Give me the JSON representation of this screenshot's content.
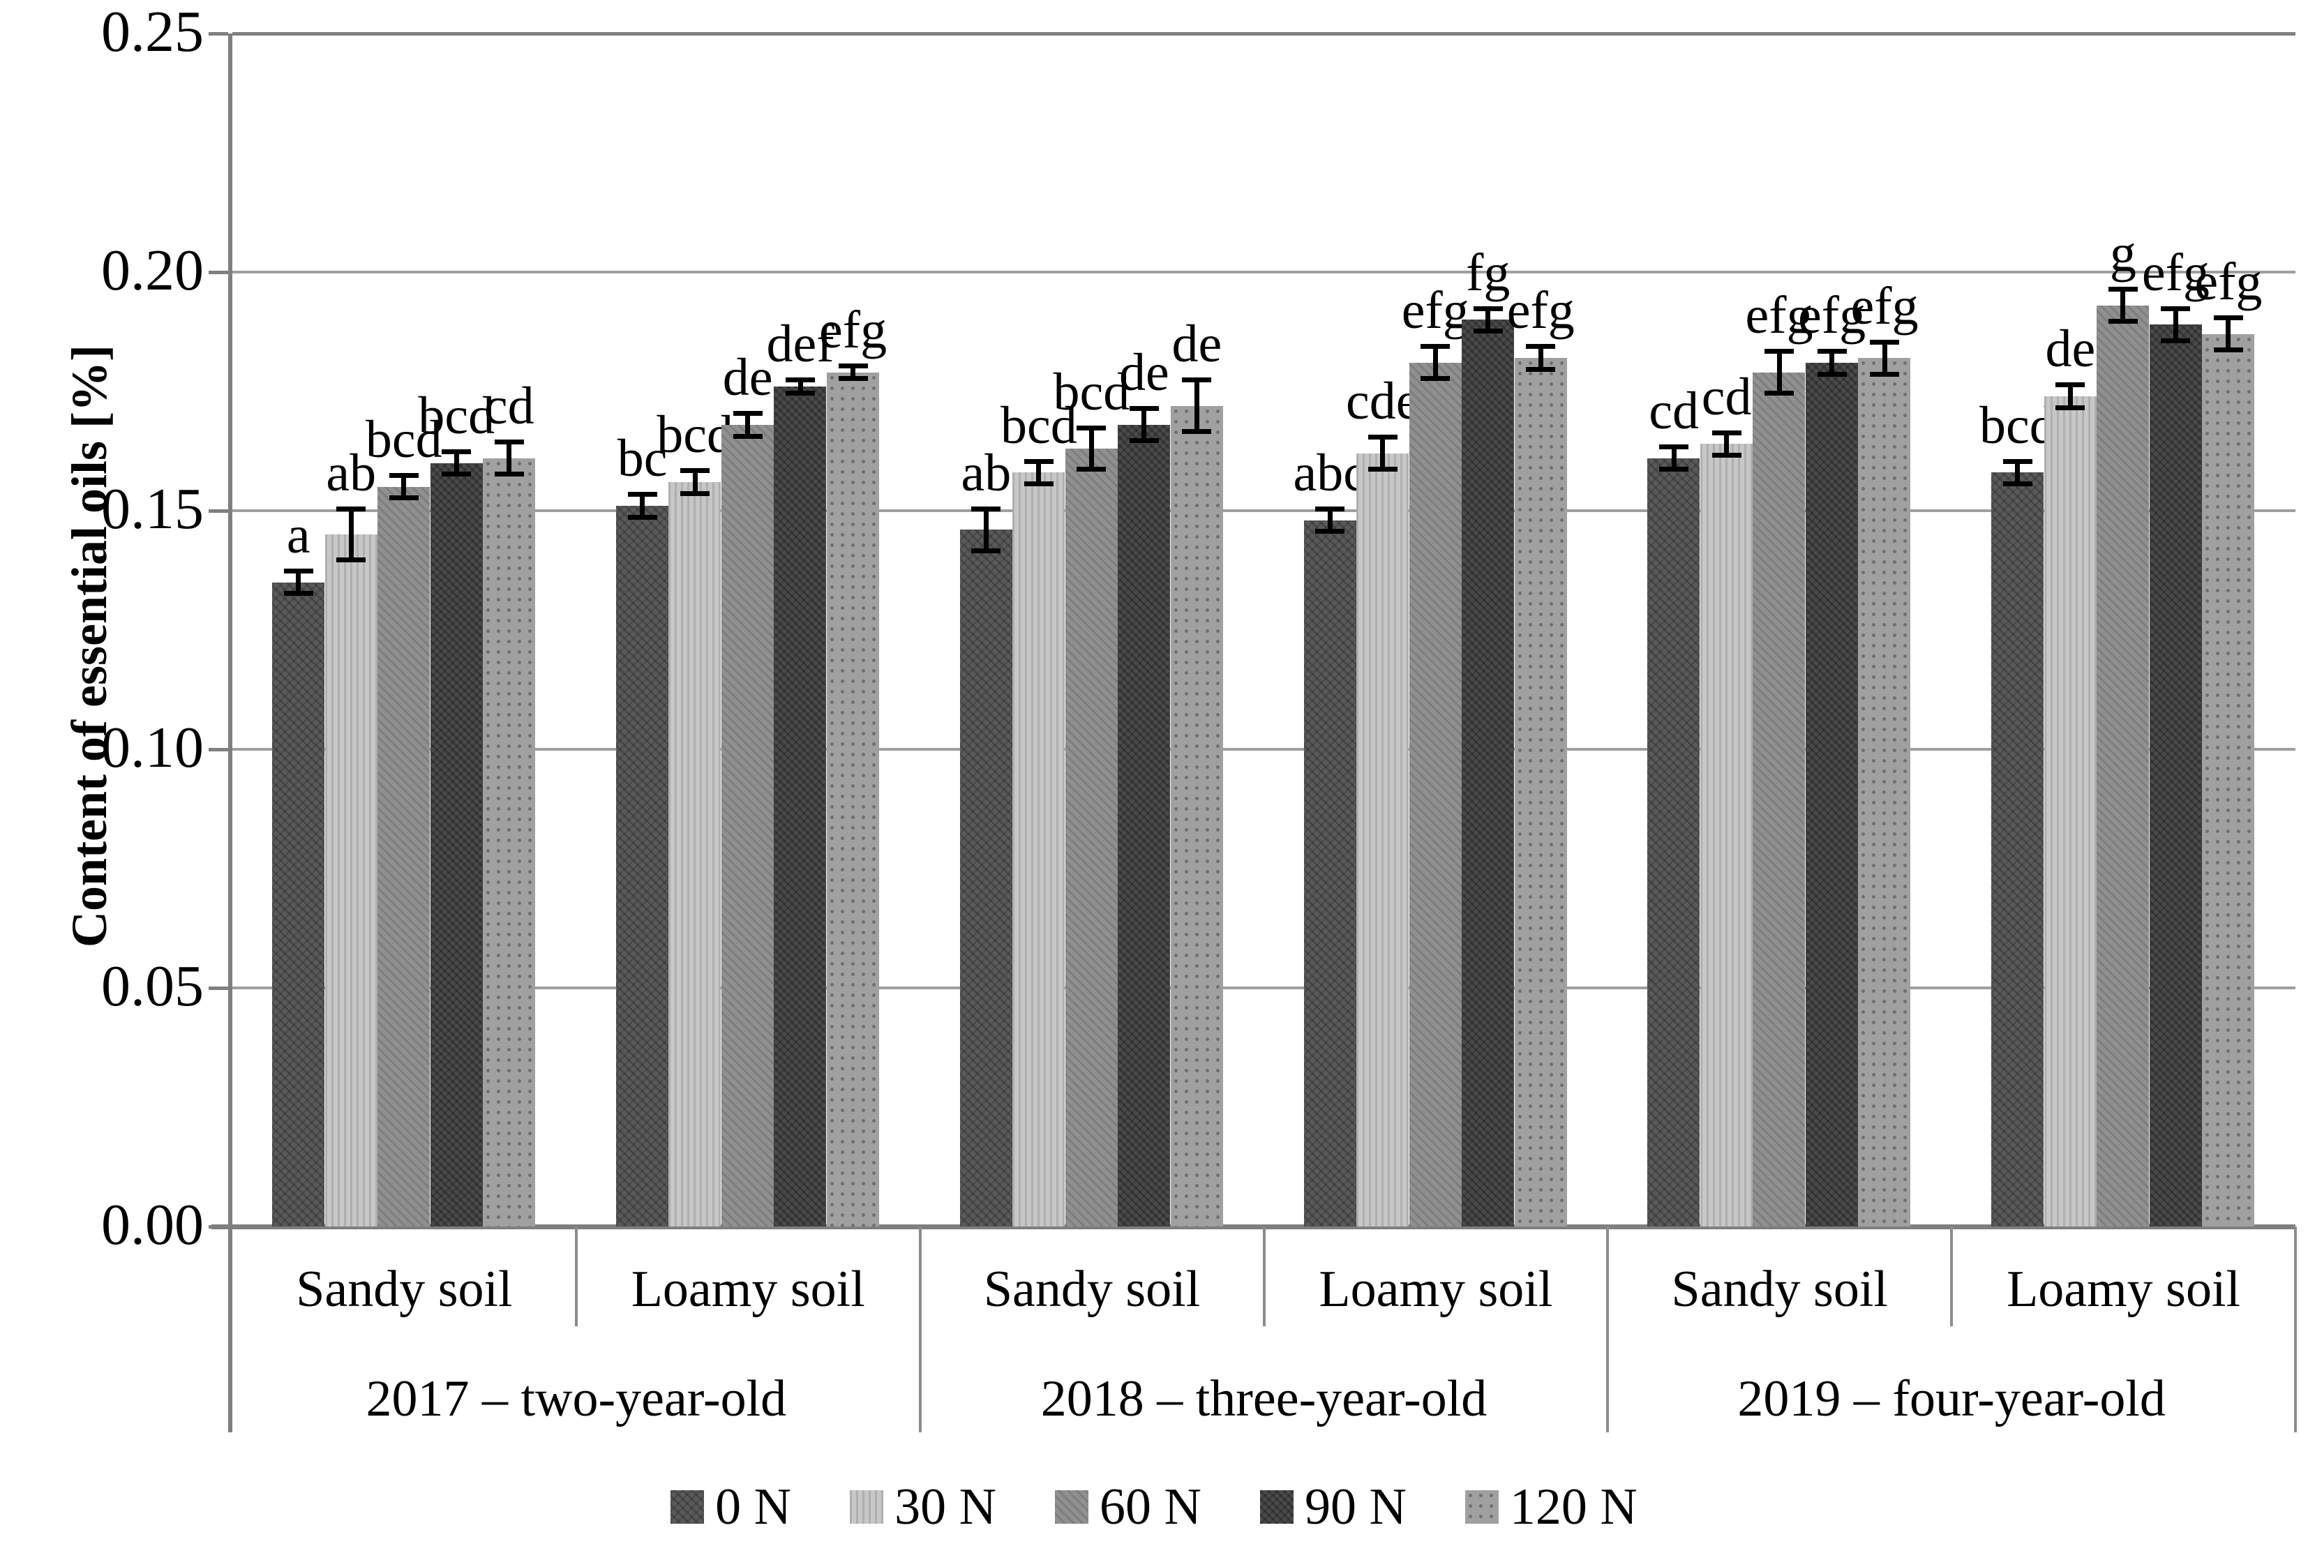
{
  "figure": {
    "y_axis_title": "Content of essential oils [%]"
  },
  "chart_data": {
    "type": "bar",
    "title": "",
    "xlabel": "",
    "ylabel": "Content of essential oils [%]",
    "ylim": [
      0,
      0.25
    ],
    "ytick_labels": [
      "0.00",
      "0.05",
      "0.10",
      "0.15",
      "0.20",
      "0.25"
    ],
    "grid": "horizontal",
    "legend_position": "bottom",
    "series_names": [
      "0 N",
      "30 N",
      "60 N",
      "90 N",
      "120 N"
    ],
    "groups": [
      {
        "year": "2017 – two-year-old",
        "soils": [
          {
            "name": "Sandy soil",
            "values": [
              0.135,
              0.145,
              0.155,
              0.16,
              0.161
            ],
            "errors": [
              0.002,
              0.005,
              0.002,
              0.002,
              0.003
            ],
            "letters": [
              "a",
              "ab",
              "bcd",
              "bcd",
              "cd"
            ]
          },
          {
            "name": "Loamy soil",
            "values": [
              0.151,
              0.156,
              0.168,
              0.176,
              0.179
            ],
            "errors": [
              0.002,
              0.002,
              0.002,
              0.001,
              0.001
            ],
            "letters": [
              "bc",
              "bcd",
              "de",
              "def",
              "efg"
            ]
          }
        ]
      },
      {
        "year": "2018 – three-year-old",
        "soils": [
          {
            "name": "Sandy soil",
            "values": [
              0.146,
              0.158,
              0.163,
              0.168,
              0.172
            ],
            "errors": [
              0.004,
              0.002,
              0.004,
              0.003,
              0.005
            ],
            "letters": [
              "ab",
              "bcd",
              "bcd",
              "de",
              "de"
            ]
          },
          {
            "name": "Loamy soil",
            "values": [
              0.148,
              0.162,
              0.181,
              0.19,
              0.182
            ],
            "errors": [
              0.002,
              0.003,
              0.003,
              0.002,
              0.002
            ],
            "letters": [
              "abc",
              "cde",
              "efg",
              "fg",
              "efg"
            ]
          }
        ]
      },
      {
        "year": "2019 – four-year-old",
        "soils": [
          {
            "name": "Sandy soil",
            "values": [
              0.161,
              0.164,
              0.179,
              0.181,
              0.182
            ],
            "errors": [
              0.002,
              0.002,
              0.004,
              0.002,
              0.003
            ],
            "letters": [
              "cd",
              "cd",
              "efg",
              "efg",
              "efg"
            ]
          },
          {
            "name": "Loamy soil",
            "values": [
              0.158,
              0.174,
              0.193,
              0.189,
              0.187
            ],
            "errors": [
              0.002,
              0.002,
              0.003,
              0.003,
              0.003
            ],
            "letters": [
              "bcd",
              "de",
              "g",
              "efg",
              "efg"
            ]
          }
        ]
      }
    ],
    "colors": {
      "0 N": "#5a5a5a",
      "30 N": "#c7c7c7",
      "60 N": "#909090",
      "90 N": "#4b4b4b",
      "120 N": "#a0a0a0",
      "axis": "#7f7f7f",
      "gridline": "#9f9f9f",
      "error_bar": "#000000",
      "text": "#000000"
    }
  }
}
